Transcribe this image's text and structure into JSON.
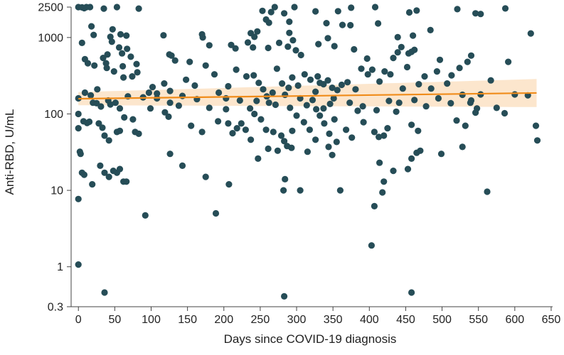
{
  "chart_data": {
    "type": "scatter",
    "title": "",
    "xlabel": "Days since COVID-19 diagnosis",
    "ylabel": "Anti-RBD, U/mL",
    "x_scale": "linear",
    "y_scale": "log",
    "xlim": [
      -10,
      652
    ],
    "ylim": [
      0.3,
      2500
    ],
    "x_ticks": [
      0,
      50,
      100,
      150,
      200,
      250,
      300,
      350,
      400,
      450,
      500,
      550,
      600,
      650
    ],
    "x_tick_labels": [
      "0",
      "50",
      "100",
      "150",
      "200",
      "250",
      "300",
      "350",
      "400",
      "450",
      "500",
      "550",
      "600",
      "650"
    ],
    "y_ticks": [
      0.3,
      1,
      10,
      100,
      1000,
      2500
    ],
    "y_tick_labels": [
      "0.3",
      "1",
      "10",
      "100",
      "1000",
      "2500"
    ],
    "grid": false,
    "legend": "none",
    "colors": {
      "points": "#264d57",
      "fit_line": "#f08c1a",
      "confidence_band": "#fbe2c4",
      "axis": "#444444"
    },
    "fit": {
      "type": "linear regression on log scale",
      "x": [
        0,
        630
      ],
      "y": [
        158,
        188
      ],
      "ci_lower": [
        130,
        123
      ],
      "ci_upper": [
        193,
        286
      ]
    },
    "points": [
      [
        0,
        2500
      ],
      [
        5,
        2480
      ],
      [
        8,
        2420
      ],
      [
        11,
        2500
      ],
      [
        16,
        2500
      ],
      [
        35,
        2390
      ],
      [
        53,
        2500
      ],
      [
        83,
        2390
      ],
      [
        270,
        2500
      ],
      [
        297,
        2500
      ],
      [
        408,
        2500
      ],
      [
        587,
        2400
      ],
      [
        253,
        2230
      ],
      [
        265,
        2150
      ],
      [
        283,
        2070
      ],
      [
        326,
        2200
      ],
      [
        357,
        2210
      ],
      [
        375,
        2450
      ],
      [
        455,
        2130
      ],
      [
        465,
        2250
      ],
      [
        521,
        2350
      ],
      [
        546,
        2070
      ],
      [
        553,
        2030
      ],
      [
        18,
        1400
      ],
      [
        47,
        1280
      ],
      [
        58,
        1100
      ],
      [
        66,
        1060
      ],
      [
        117,
        1070
      ],
      [
        128,
        580
      ],
      [
        170,
        1100
      ],
      [
        171,
        1000
      ],
      [
        237,
        1140
      ],
      [
        242,
        1020
      ],
      [
        246,
        1200
      ],
      [
        258,
        1720
      ],
      [
        262,
        1560
      ],
      [
        290,
        1610
      ],
      [
        290,
        1150
      ],
      [
        295,
        920
      ],
      [
        341,
        1540
      ],
      [
        363,
        1460
      ],
      [
        374,
        1450
      ],
      [
        412,
        1530
      ],
      [
        439,
        1010
      ],
      [
        460,
        1060
      ],
      [
        484,
        1250
      ],
      [
        622,
        1130
      ],
      [
        5,
        850
      ],
      [
        9,
        520
      ],
      [
        13,
        460
      ],
      [
        22,
        430
      ],
      [
        40,
        600
      ],
      [
        46,
        880
      ],
      [
        56,
        740
      ],
      [
        60,
        620
      ],
      [
        67,
        710
      ],
      [
        72,
        560
      ],
      [
        80,
        450
      ],
      [
        125,
        600
      ],
      [
        133,
        500
      ],
      [
        153,
        480
      ],
      [
        180,
        790
      ],
      [
        210,
        800
      ],
      [
        216,
        720
      ],
      [
        233,
        860
      ],
      [
        240,
        740
      ],
      [
        261,
        730
      ],
      [
        276,
        850
      ],
      [
        288,
        760
      ],
      [
        299,
        680
      ],
      [
        306,
        590
      ],
      [
        330,
        820
      ],
      [
        343,
        980
      ],
      [
        352,
        770
      ],
      [
        379,
        700
      ],
      [
        397,
        530
      ],
      [
        433,
        540
      ],
      [
        439,
        640
      ],
      [
        444,
        750
      ],
      [
        454,
        620
      ],
      [
        458,
        650
      ],
      [
        462,
        690
      ],
      [
        497,
        510
      ],
      [
        524,
        400
      ],
      [
        535,
        480
      ],
      [
        540,
        580
      ],
      [
        591,
        480
      ],
      [
        0,
        65
      ],
      [
        7,
        80
      ],
      [
        12,
        76
      ],
      [
        15,
        79
      ],
      [
        20,
        140
      ],
      [
        25,
        138
      ],
      [
        28,
        75
      ],
      [
        33,
        66
      ],
      [
        36,
        52
      ],
      [
        42,
        45
      ],
      [
        44,
        133
      ],
      [
        53,
        58
      ],
      [
        57,
        60
      ],
      [
        63,
        90
      ],
      [
        75,
        85
      ],
      [
        78,
        58
      ],
      [
        83,
        55
      ],
      [
        99,
        118
      ],
      [
        119,
        105
      ],
      [
        124,
        92
      ],
      [
        138,
        128
      ],
      [
        155,
        70
      ],
      [
        170,
        58
      ],
      [
        192,
        80
      ],
      [
        203,
        115
      ],
      [
        206,
        75
      ],
      [
        212,
        56
      ],
      [
        218,
        65
      ],
      [
        224,
        75
      ],
      [
        230,
        62
      ],
      [
        242,
        100
      ],
      [
        251,
        85
      ],
      [
        258,
        62
      ],
      [
        268,
        58
      ],
      [
        279,
        52
      ],
      [
        283,
        44
      ],
      [
        287,
        38
      ],
      [
        294,
        60
      ],
      [
        300,
        95
      ],
      [
        310,
        78
      ],
      [
        318,
        62
      ],
      [
        327,
        115
      ],
      [
        332,
        95
      ],
      [
        338,
        75
      ],
      [
        345,
        55
      ],
      [
        352,
        85
      ],
      [
        355,
        43
      ],
      [
        368,
        62
      ],
      [
        376,
        49
      ],
      [
        384,
        110
      ],
      [
        392,
        78
      ],
      [
        407,
        58
      ],
      [
        413,
        50
      ],
      [
        420,
        52
      ],
      [
        425,
        65
      ],
      [
        437,
        107
      ],
      [
        458,
        72
      ],
      [
        467,
        60
      ],
      [
        520,
        82
      ],
      [
        532,
        70
      ],
      [
        546,
        104
      ],
      [
        586,
        102
      ],
      [
        629,
        70
      ],
      [
        631,
        45
      ],
      [
        21,
        1080
      ],
      [
        34,
        540
      ],
      [
        38,
        460
      ],
      [
        39,
        400
      ],
      [
        44,
        1020
      ],
      [
        49,
        360
      ],
      [
        61,
        420
      ],
      [
        62,
        300
      ],
      [
        74,
        310
      ],
      [
        81,
        350
      ],
      [
        97,
        190
      ],
      [
        102,
        225
      ],
      [
        108,
        185
      ],
      [
        118,
        250
      ],
      [
        126,
        200
      ],
      [
        148,
        280
      ],
      [
        160,
        235
      ],
      [
        175,
        430
      ],
      [
        187,
        330
      ],
      [
        206,
        230
      ],
      [
        217,
        380
      ],
      [
        231,
        310
      ],
      [
        241,
        320
      ],
      [
        248,
        255
      ],
      [
        254,
        210
      ],
      [
        259,
        170
      ],
      [
        267,
        190
      ],
      [
        273,
        390
      ],
      [
        280,
        250
      ],
      [
        289,
        220
      ],
      [
        294,
        300
      ],
      [
        302,
        235
      ],
      [
        311,
        330
      ],
      [
        319,
        280
      ],
      [
        326,
        195
      ],
      [
        329,
        310
      ],
      [
        332,
        255
      ],
      [
        337,
        245
      ],
      [
        343,
        275
      ],
      [
        349,
        220
      ],
      [
        356,
        205
      ],
      [
        362,
        240
      ],
      [
        370,
        260
      ],
      [
        381,
        210
      ],
      [
        389,
        390
      ],
      [
        398,
        330
      ],
      [
        404,
        380
      ],
      [
        414,
        265
      ],
      [
        421,
        360
      ],
      [
        429,
        330
      ],
      [
        446,
        215
      ],
      [
        452,
        410
      ],
      [
        468,
        245
      ],
      [
        476,
        310
      ],
      [
        485,
        215
      ],
      [
        493,
        360
      ],
      [
        507,
        250
      ],
      [
        513,
        320
      ],
      [
        539,
        140
      ],
      [
        553,
        180
      ],
      [
        567,
        275
      ],
      [
        600,
        180
      ],
      [
        618,
        175
      ],
      [
        0,
        160
      ],
      [
        9,
        190
      ],
      [
        17,
        175
      ],
      [
        26,
        210
      ],
      [
        31,
        125
      ],
      [
        41,
        150
      ],
      [
        51,
        140
      ],
      [
        57,
        118
      ],
      [
        68,
        170
      ],
      [
        89,
        165
      ],
      [
        108,
        160
      ],
      [
        126,
        140
      ],
      [
        143,
        172
      ],
      [
        163,
        156
      ],
      [
        180,
        120
      ],
      [
        193,
        190
      ],
      [
        203,
        160
      ],
      [
        222,
        150
      ],
      [
        236,
        118
      ],
      [
        245,
        148
      ],
      [
        262,
        140
      ],
      [
        271,
        132
      ],
      [
        284,
        178
      ],
      [
        291,
        120
      ],
      [
        305,
        160
      ],
      [
        314,
        130
      ],
      [
        322,
        152
      ],
      [
        337,
        118
      ],
      [
        346,
        135
      ],
      [
        351,
        160
      ],
      [
        373,
        140
      ],
      [
        391,
        126
      ],
      [
        410,
        112
      ],
      [
        427,
        148
      ],
      [
        441,
        140
      ],
      [
        462,
        152
      ],
      [
        478,
        126
      ],
      [
        495,
        160
      ],
      [
        512,
        138
      ],
      [
        528,
        178
      ],
      [
        540,
        150
      ],
      [
        548,
        118
      ],
      [
        575,
        120
      ],
      [
        0,
        100
      ],
      [
        2,
        32
      ],
      [
        3,
        30
      ],
      [
        5,
        17
      ],
      [
        8,
        16
      ],
      [
        19,
        12
      ],
      [
        30,
        21
      ],
      [
        36,
        17
      ],
      [
        42,
        15
      ],
      [
        48,
        18
      ],
      [
        53,
        17
      ],
      [
        57,
        19
      ],
      [
        62,
        13
      ],
      [
        66,
        13
      ],
      [
        92,
        4.7
      ],
      [
        126,
        30
      ],
      [
        143,
        21
      ],
      [
        175,
        15
      ],
      [
        189,
        5
      ],
      [
        207,
        12
      ],
      [
        237,
        46
      ],
      [
        247,
        26
      ],
      [
        261,
        35
      ],
      [
        274,
        33
      ],
      [
        282,
        10
      ],
      [
        284,
        14
      ],
      [
        293,
        36
      ],
      [
        305,
        10
      ],
      [
        315,
        32
      ],
      [
        326,
        46
      ],
      [
        344,
        37
      ],
      [
        349,
        29
      ],
      [
        360,
        10
      ],
      [
        407,
        6.2
      ],
      [
        414,
        23
      ],
      [
        418,
        9.4
      ],
      [
        420,
        13
      ],
      [
        433,
        18
      ],
      [
        453,
        19
      ],
      [
        458,
        26
      ],
      [
        465,
        31
      ],
      [
        470,
        33
      ],
      [
        499,
        30
      ],
      [
        528,
        37
      ],
      [
        562,
        9.6
      ],
      [
        0,
        7.7
      ],
      [
        0,
        1.07
      ],
      [
        36,
        0.46
      ],
      [
        283,
        0.41
      ],
      [
        403,
        1.9
      ],
      [
        458,
        0.46
      ]
    ]
  }
}
